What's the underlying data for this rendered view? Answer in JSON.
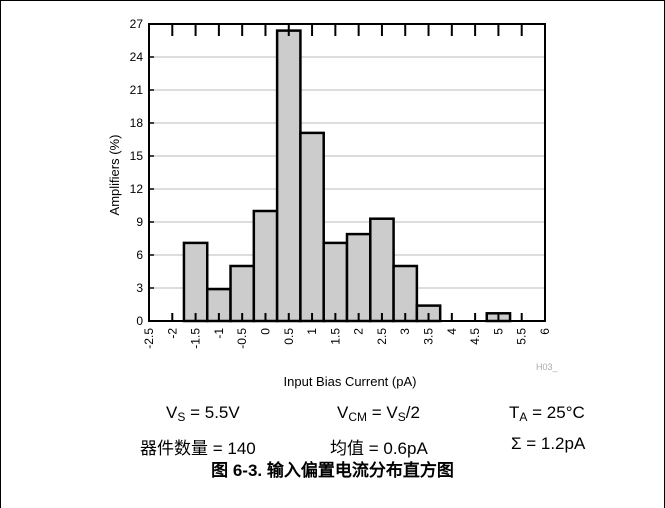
{
  "chart_data": {
    "type": "bar",
    "xlabel": "Input Bias Current (pA)",
    "ylabel": "Amplifiers (%)",
    "x_ticks": [
      "-2.5",
      "-2",
      "-1.5",
      "-1",
      "-0.5",
      "0",
      "0.5",
      "1",
      "1.5",
      "2",
      "2.5",
      "3",
      "3.5",
      "4",
      "4.5",
      "5",
      "5.5",
      "6"
    ],
    "y_ticks": [
      "0",
      "3",
      "6",
      "9",
      "12",
      "15",
      "18",
      "21",
      "24",
      "27"
    ],
    "ylim": [
      0,
      27
    ],
    "xlim": [
      -2.5,
      6
    ],
    "bin_width": 0.5,
    "bins": [
      {
        "x": -1.5,
        "value": 7.1
      },
      {
        "x": -1.0,
        "value": 2.9
      },
      {
        "x": -0.5,
        "value": 5.0
      },
      {
        "x": 0.0,
        "value": 10.0
      },
      {
        "x": 0.5,
        "value": 26.4
      },
      {
        "x": 1.0,
        "value": 17.1
      },
      {
        "x": 1.5,
        "value": 7.1
      },
      {
        "x": 2.0,
        "value": 7.9
      },
      {
        "x": 2.5,
        "value": 9.3
      },
      {
        "x": 3.0,
        "value": 5.0
      },
      {
        "x": 3.5,
        "value": 1.4
      },
      {
        "x": 5.0,
        "value": 0.7
      }
    ],
    "grid": true,
    "watermark": "H03_",
    "colors": {
      "bar_fill": "#cccccc",
      "bar_stroke": "#000000",
      "grid": "#bbbbbb"
    }
  },
  "conditions": {
    "vs": {
      "sym": "V",
      "sub": "S",
      "rest": " = 5.5V"
    },
    "vcm": {
      "sym": "V",
      "sub": "CM",
      "mid": " = V",
      "sub2": "S",
      "rest": "/2"
    },
    "ta": {
      "sym": "T",
      "sub": "A",
      "rest": " = 25°C"
    }
  },
  "stats": {
    "count": "器件数量 = 140",
    "mean": "均值 = 0.6pA",
    "sigma": "Σ = 1.2pA"
  },
  "caption": "图 6-3. 输入偏置电流分布直方图"
}
